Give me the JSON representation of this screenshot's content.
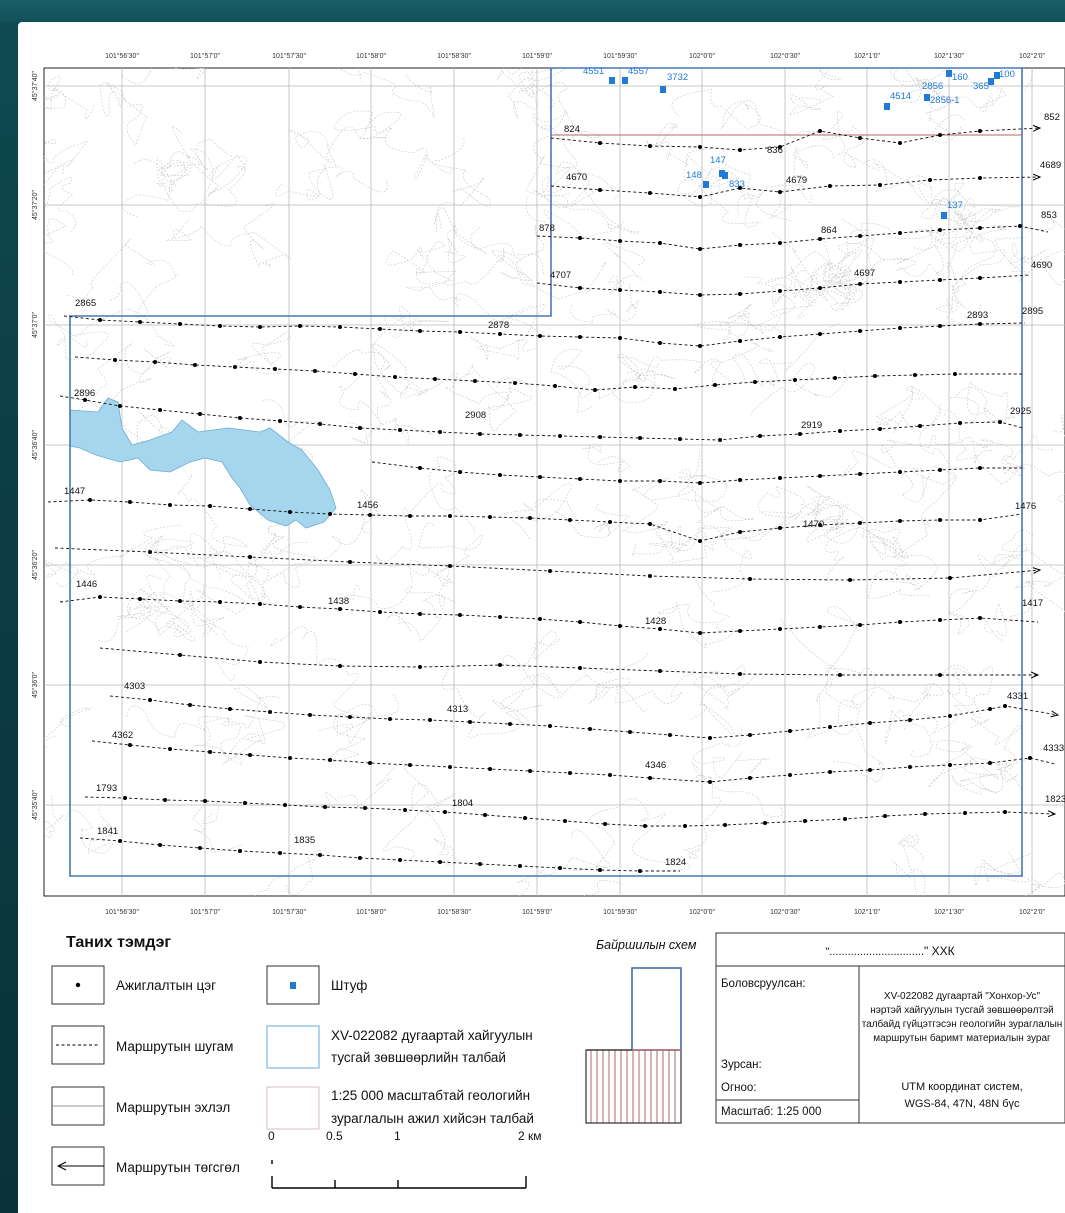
{
  "map": {
    "top_lon_labels": [
      "101°56'30\"",
      "101°57'0\"",
      "101°57'30\"",
      "101°58'0\"",
      "101°58'30\"",
      "101°59'0\"",
      "101°59'30\"",
      "102°0'0\"",
      "102°0'30\"",
      "102°1'0\"",
      "102°1'30\"",
      "102°2'0\""
    ],
    "bottom_lon_labels": [
      "101°56'30\"",
      "101°57'0\"",
      "101°57'30\"",
      "101°58'0\"",
      "101°58'30\"",
      "101°59'0\"",
      "101°59'30\"",
      "102°0'0\"",
      "102°0'30\"",
      "102°1'0\"",
      "102°1'30\"",
      "102°2'0\""
    ],
    "lat_labels": [
      "45°37'40\"",
      "45°37'20\"",
      "45°37'0\"",
      "45°36'40\"",
      "45°36'20\"",
      "45°36'0\"",
      "45°35'40\""
    ],
    "route_labels": [
      "852",
      "824",
      "836",
      "4689",
      "4670",
      "4679",
      "853",
      "878",
      "864",
      "4690",
      "4707",
      "4697",
      "2865",
      "2893",
      "2895",
      "2878",
      "2896",
      "2908",
      "2919",
      "2925",
      "1447",
      "1456",
      "1470",
      "1476",
      "1446",
      "1438",
      "1428",
      "1417",
      "4303",
      "4313",
      "4331",
      "4362",
      "4346",
      "4333",
      "1793",
      "1804",
      "1823",
      "1841",
      "1835",
      "1824"
    ],
    "sample_labels": [
      "3732",
      "4514",
      "2856",
      "2856-1",
      "160",
      "365",
      "100",
      "147",
      "148",
      "833",
      "137",
      "4551",
      "4557"
    ],
    "colors": {
      "permit_border": "#4a76b8",
      "mapped_area_border": "#b06a6a",
      "lake": "#a6d6ee",
      "sample": "#1f7ad8",
      "contour": "#c4c4c4"
    }
  },
  "legend": {
    "title": "Таних тэмдэг",
    "observation_point": "Ажиглалтын цэг",
    "route_line": "Маршрутын шугам",
    "route_start": "Маршрутын эхлэл",
    "route_end": "Маршрутын төгсгөл",
    "sample": "Штуф",
    "permit_area_line1": "XV-022082 дугаартай хайгуулын",
    "permit_area_line2": "тусгай зөвшөөрлийн талбай",
    "mapped_area_line1": "1:25 000 масштабтай геологийн",
    "mapped_area_line2": "зураглалын ажил хийсэн талбай"
  },
  "scalebar": {
    "labels": [
      "0",
      "0.5",
      "1",
      "2 км"
    ]
  },
  "location_scheme": {
    "title": "Байршилын схем"
  },
  "title_block": {
    "header_prefix": "\"",
    "header_dots": "...............................",
    "header_suffix": "\" ХХК",
    "compiled_by": "Боловсруулсан:",
    "drawn_by": "Зурсан:",
    "date": "Огноо:",
    "scale": "Масштаб: 1:25 000",
    "desc_line1": "XV-022082 дугаартай \"Хонхор-Ус\"",
    "desc_line2": "нэртэй хайгуулын тусгай зөвшөөрөлтэй",
    "desc_line3": "талбайд гүйцэтгэсэн геологийн зураглалын",
    "desc_line4": "маршрутын баримт материалын зураг",
    "crs_line1": "UTM координат систем,",
    "crs_line2": "WGS-84, 47N, 48N бүс"
  }
}
